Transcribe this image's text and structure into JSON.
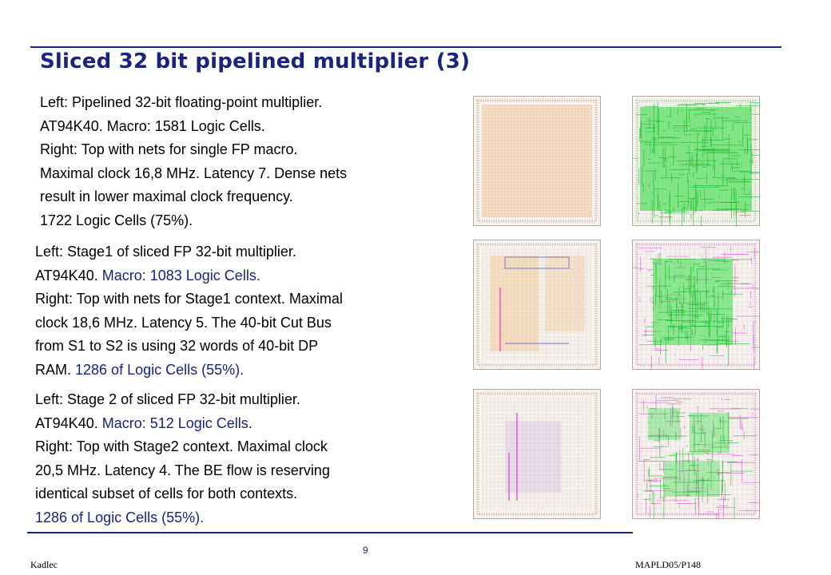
{
  "slide": {
    "title": "Sliced 32 bit pipelined multiplier (3)",
    "page_number": "9",
    "footer_left": "Kadlec",
    "footer_right": "MAPLD05/P148"
  },
  "blocks": [
    {
      "lines": [
        "Left: Pipelined 32-bit floating-point multiplier.",
        "AT94K40. Macro: 1581 Logic Cells.",
        "Right: Top with nets for single FP macro.",
        "Maximal clock 16,8 MHz. Latency 7. Dense nets",
        "result in lower maximal clock frequency.",
        "1722 Logic Cells (75%)."
      ]
    },
    {
      "line1": "Left: Stage1 of sliced FP 32-bit multiplier.",
      "line2_prefix": "AT94K40. ",
      "line2_highlight": "Macro: 1083 Logic Cells.",
      "line3": "Right: Top with nets for Stage1 context. Maximal",
      "line4": "clock 18,6 MHz. Latency 5. The 40-bit Cut Bus",
      "line5": "from S1 to S2 is using 32 words of 40-bit DP",
      "line6_prefix": "RAM. ",
      "line6_highlight": "1286 of Logic Cells (55%)."
    },
    {
      "line1": "Left: Stage 2 of sliced FP 32-bit multiplier.",
      "line2_prefix": "AT94K40. ",
      "line2_highlight": "Macro: 512 Logic Cells.",
      "line3": "Right: Top with Stage2 context. Maximal clock",
      "line4": "20,5 MHz. Latency 4. The BE  flow is reserving",
      "line5": "identical subset of cells for both contexts.",
      "line6_highlight": "1286 of Logic Cells (55%)."
    }
  ],
  "colors": {
    "title": "#1a237e",
    "highlight_text": "#1a237e",
    "net_green": "#22dd33",
    "net_magenta": "#dd22cc",
    "cell_orange": "#f3c48a",
    "cell_purple": "#c8a0e0"
  },
  "images": [
    "floorplan-macro-1581-cells",
    "top-nets-single-fp-macro",
    "floorplan-stage1-macro",
    "top-nets-stage1-context",
    "floorplan-stage2-macro",
    "top-nets-stage2-context"
  ]
}
